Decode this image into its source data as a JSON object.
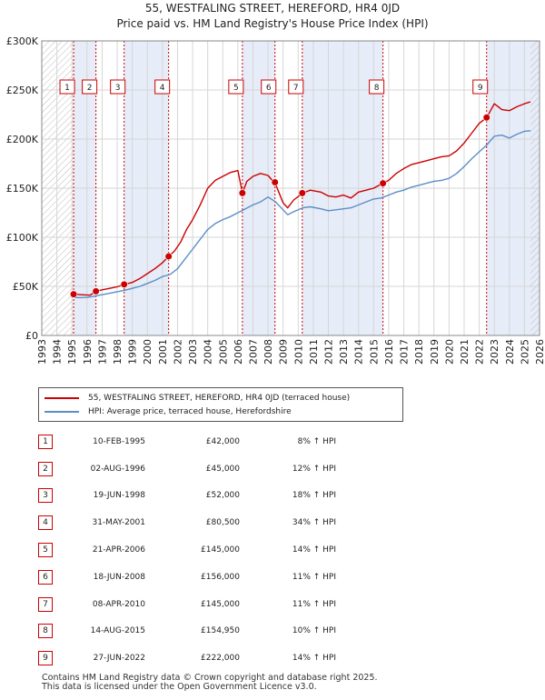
{
  "header": {
    "title": "55, WESTFALING STREET, HEREFORD, HR4 0JD",
    "subtitle": "Price paid vs. HM Land Registry's House Price Index (HPI)"
  },
  "colors": {
    "property": "#cc0000",
    "hpi": "#5b8ec7",
    "shade": "#e6ecf8"
  },
  "chart_data": {
    "type": "line",
    "title": "55, WESTFALING STREET, HEREFORD, HR4 0JD",
    "subtitle": "Price paid vs. HM Land Registry's House Price Index (HPI)",
    "xlim": [
      1993,
      2026
    ],
    "ylim": [
      0,
      300000
    ],
    "y_ticks": [
      0,
      50000,
      100000,
      150000,
      200000,
      250000,
      300000
    ],
    "y_tick_labels": [
      "£0",
      "£50K",
      "£100K",
      "£150K",
      "£200K",
      "£250K",
      "£300K"
    ],
    "x_ticks": [
      1993,
      1994,
      1995,
      1996,
      1997,
      1998,
      1999,
      2000,
      2001,
      2002,
      2003,
      2004,
      2005,
      2006,
      2007,
      2008,
      2009,
      2010,
      2011,
      2012,
      2013,
      2014,
      2015,
      2016,
      2017,
      2018,
      2019,
      2020,
      2021,
      2022,
      2023,
      2024,
      2025,
      2026
    ],
    "x_tick_labels": [
      "1993",
      "1994",
      "1995",
      "1996",
      "1997",
      "1998",
      "1999",
      "2000",
      "2001",
      "2002",
      "2003",
      "2004",
      "2005",
      "2006",
      "2007",
      "2008",
      "2009",
      "2010",
      "2011",
      "2012",
      "2013",
      "2014",
      "2015",
      "2016",
      "2017",
      "2018",
      "2019",
      "2020",
      "2021",
      "2022",
      "2023",
      "2024",
      "2025",
      "2026"
    ],
    "grid": true,
    "series": [
      {
        "name": "55, WESTFALING STREET, HEREFORD, HR4 0JD (terraced house)",
        "x": [
          1995.1,
          1995.6,
          1996.2,
          1996.6,
          1997.0,
          1997.5,
          1998.0,
          1998.5,
          1999.0,
          1999.5,
          2000.0,
          2000.5,
          2001.0,
          2001.4,
          2001.8,
          2002.2,
          2002.6,
          2003.0,
          2003.5,
          2004.0,
          2004.5,
          2005.0,
          2005.5,
          2006.0,
          2006.3,
          2006.6,
          2007.0,
          2007.5,
          2008.0,
          2008.5,
          2009.0,
          2009.3,
          2009.7,
          2010.3,
          2010.8,
          2011.5,
          2012.0,
          2012.5,
          2013.0,
          2013.5,
          2014.0,
          2014.5,
          2015.0,
          2015.6,
          2016.0,
          2016.5,
          2017.0,
          2017.5,
          2018.0,
          2018.5,
          2019.0,
          2019.5,
          2020.0,
          2020.5,
          2021.0,
          2021.5,
          2022.0,
          2022.5,
          2023.0,
          2023.5,
          2024.0,
          2024.5,
          2025.0,
          2025.4
        ],
        "values": [
          42000,
          41500,
          41000,
          45000,
          46500,
          48000,
          49500,
          52000,
          54000,
          58000,
          63000,
          68000,
          74000,
          80500,
          86000,
          95000,
          108000,
          118000,
          133000,
          150000,
          158000,
          162000,
          166000,
          168000,
          145000,
          157000,
          162000,
          165000,
          163000,
          154000,
          135000,
          130000,
          138000,
          145000,
          148000,
          146000,
          142000,
          141000,
          143000,
          140000,
          146000,
          148000,
          150000,
          154950,
          158000,
          165000,
          170000,
          174000,
          176000,
          178000,
          180000,
          182000,
          183000,
          188000,
          196000,
          206000,
          216000,
          222000,
          236000,
          230000,
          229000,
          233000,
          236000,
          238000
        ]
      },
      {
        "name": "HPI: Average price, terraced house, Herefordshire",
        "x": [
          1995.0,
          1995.5,
          1996.0,
          1996.5,
          1997.0,
          1997.5,
          1998.0,
          1998.5,
          1999.0,
          1999.5,
          2000.0,
          2000.5,
          2001.0,
          2001.5,
          2002.0,
          2002.5,
          2003.0,
          2003.5,
          2004.0,
          2004.5,
          2005.0,
          2005.5,
          2006.0,
          2006.5,
          2007.0,
          2007.5,
          2008.0,
          2008.5,
          2009.0,
          2009.3,
          2009.7,
          2010.3,
          2010.8,
          2011.5,
          2012.0,
          2012.5,
          2013.0,
          2013.5,
          2014.0,
          2014.5,
          2015.0,
          2015.5,
          2016.0,
          2016.5,
          2017.0,
          2017.5,
          2018.0,
          2018.5,
          2019.0,
          2019.5,
          2020.0,
          2020.5,
          2021.0,
          2021.5,
          2022.0,
          2022.5,
          2023.0,
          2023.5,
          2024.0,
          2024.5,
          2025.0,
          2025.4
        ],
        "values": [
          39000,
          38500,
          38800,
          40000,
          41500,
          43000,
          44500,
          46000,
          48000,
          50000,
          53000,
          56000,
          60000,
          62000,
          68000,
          78000,
          88000,
          98000,
          108000,
          114000,
          118000,
          121000,
          125000,
          129000,
          133000,
          136000,
          141000,
          136000,
          128000,
          123000,
          126000,
          130000,
          131000,
          129000,
          127000,
          128000,
          129000,
          130000,
          133000,
          136000,
          139000,
          140000,
          143000,
          146000,
          148000,
          151000,
          153000,
          155000,
          157000,
          158000,
          160000,
          165000,
          172000,
          180000,
          187000,
          194000,
          203000,
          204000,
          201000,
          205000,
          208000,
          208500
        ]
      }
    ],
    "sales": [
      {
        "id": "1",
        "year": 1995.11,
        "price": 42000
      },
      {
        "id": "2",
        "year": 1996.59,
        "price": 45000
      },
      {
        "id": "3",
        "year": 1998.46,
        "price": 52000
      },
      {
        "id": "4",
        "year": 2001.41,
        "price": 80500
      },
      {
        "id": "5",
        "year": 2006.3,
        "price": 145000
      },
      {
        "id": "6",
        "year": 2008.46,
        "price": 156000
      },
      {
        "id": "7",
        "year": 2010.27,
        "price": 145000
      },
      {
        "id": "8",
        "year": 2015.62,
        "price": 154950
      },
      {
        "id": "9",
        "year": 2022.49,
        "price": 222000
      }
    ],
    "shaded_ranges": [
      [
        1995.11,
        1996.59
      ],
      [
        1998.46,
        2001.41
      ],
      [
        2006.3,
        2008.46
      ],
      [
        2010.27,
        2015.62
      ],
      [
        2022.49,
        2026
      ]
    ],
    "hatched_ranges": [
      [
        1993,
        1995.11
      ],
      [
        2025.4,
        2026
      ]
    ]
  },
  "legend": {
    "property_label": "55, WESTFALING STREET, HEREFORD, HR4 0JD (terraced house)",
    "hpi_label": "HPI: Average price, terraced house, Herefordshire"
  },
  "sales_table": [
    {
      "num": "1",
      "date": "10-FEB-1995",
      "price": "£42,000",
      "hpi": "8% ↑ HPI"
    },
    {
      "num": "2",
      "date": "02-AUG-1996",
      "price": "£45,000",
      "hpi": "12% ↑ HPI"
    },
    {
      "num": "3",
      "date": "19-JUN-1998",
      "price": "£52,000",
      "hpi": "18% ↑ HPI"
    },
    {
      "num": "4",
      "date": "31-MAY-2001",
      "price": "£80,500",
      "hpi": "34% ↑ HPI"
    },
    {
      "num": "5",
      "date": "21-APR-2006",
      "price": "£145,000",
      "hpi": "14% ↑ HPI"
    },
    {
      "num": "6",
      "date": "18-JUN-2008",
      "price": "£156,000",
      "hpi": "11% ↑ HPI"
    },
    {
      "num": "7",
      "date": "08-APR-2010",
      "price": "£145,000",
      "hpi": "11% ↑ HPI"
    },
    {
      "num": "8",
      "date": "14-AUG-2015",
      "price": "£154,950",
      "hpi": "10% ↑ HPI"
    },
    {
      "num": "9",
      "date": "27-JUN-2022",
      "price": "£222,000",
      "hpi": "14% ↑ HPI"
    }
  ],
  "footer": {
    "line1": "Contains HM Land Registry data © Crown copyright and database right 2025.",
    "line2": "This data is licensed under the Open Government Licence v3.0."
  }
}
